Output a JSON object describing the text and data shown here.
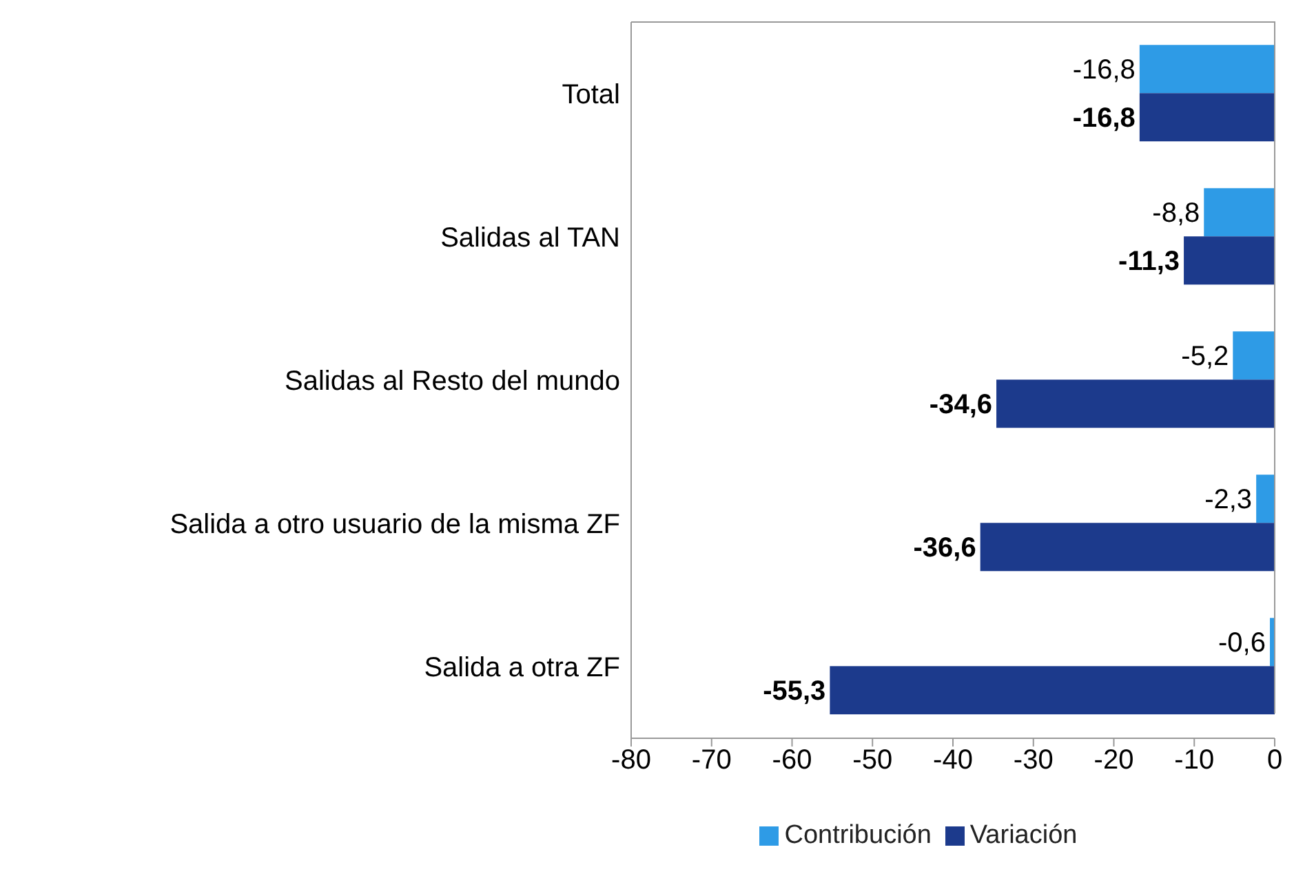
{
  "chart_data": {
    "type": "bar",
    "orientation": "horizontal",
    "categories": [
      "Total",
      "Salidas al TAN",
      "Salidas al Resto del mundo",
      "Salida a otro usuario de la misma ZF",
      "Salida a otra ZF"
    ],
    "series": [
      {
        "name": "Contribución",
        "color": "#2e9be6",
        "values": [
          -16.8,
          -8.8,
          -5.2,
          -2.3,
          -0.6
        ],
        "value_labels": [
          "-16,8",
          "-8,8",
          "-5,2",
          "-2,3",
          "-0,6"
        ]
      },
      {
        "name": "Variación",
        "color": "#1c3a8c",
        "values": [
          -16.8,
          -11.3,
          -34.6,
          -36.6,
          -55.3
        ],
        "value_labels": [
          "-16,8",
          "-11,3",
          "-34,6",
          "-36,6",
          "-55,3"
        ]
      }
    ],
    "xlim": [
      -80,
      0
    ],
    "xticks": [
      -80,
      -70,
      -60,
      -50,
      -40,
      -30,
      -20,
      -10,
      0
    ],
    "grid": false,
    "legend": "bottom"
  }
}
